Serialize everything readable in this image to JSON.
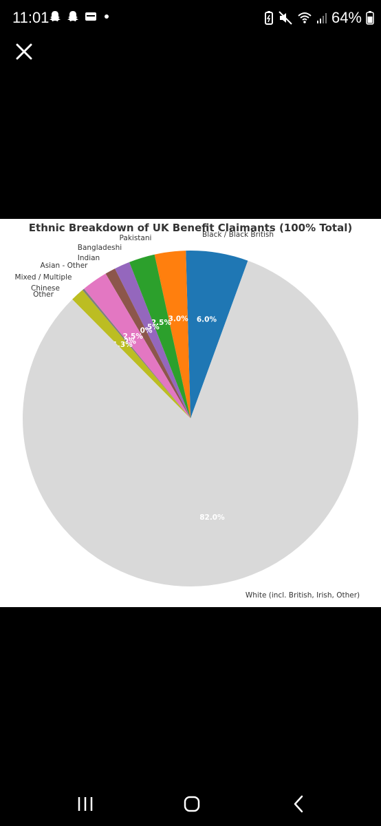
{
  "status_bar": {
    "time": "11:01",
    "battery_percent": "64%",
    "left_icons": [
      "snapchat-icon",
      "snapchat-icon",
      "wallet-icon",
      "dot-icon"
    ],
    "right_icons": [
      "battery-saver-icon",
      "mute-icon",
      "wifi-icon",
      "signal-icon",
      "battery-icon"
    ]
  },
  "viewer": {
    "close_icon": "close-icon"
  },
  "chart_data": {
    "type": "pie",
    "title": "Ethnic Breakdown of UK Benefit Claimants (100% Total)",
    "start_angle_deg": 70,
    "direction": "counterclockwise",
    "slices": [
      {
        "label": "Black / Black British",
        "value": 6.0,
        "pct_label": "6.0%",
        "color": "#1f77b4"
      },
      {
        "label": "Pakistani",
        "value": 3.0,
        "pct_label": "3.0%",
        "color": "#ff7f0e"
      },
      {
        "label": "Bangladeshi",
        "value": 2.5,
        "pct_label": "2.5%",
        "color": "#2ca02c"
      },
      {
        "label": "Indian",
        "value": 1.5,
        "pct_label": "1.5%",
        "color": "#9467bd"
      },
      {
        "label": "Asian - Other",
        "value": 1.0,
        "pct_label": "1.0%",
        "color": "#8c564b"
      },
      {
        "label": "Mixed / Multiple",
        "value": 2.5,
        "pct_label": "2.5%",
        "color": "#e377c2"
      },
      {
        "label": "Chinese",
        "value": 0.2,
        "pct_label": "0.2%",
        "color": "#7f7f7f"
      },
      {
        "label": "Other",
        "value": 1.3,
        "pct_label": "1.3%",
        "color": "#bcbd22"
      },
      {
        "label": "White (incl. British, Irish, Other)",
        "value": 82.0,
        "pct_label": "82.0%",
        "color": "#d9d9d9"
      }
    ]
  },
  "nav_bar": {
    "recents_icon": "recents-icon",
    "home_icon": "home-icon",
    "back_icon": "back-icon"
  }
}
